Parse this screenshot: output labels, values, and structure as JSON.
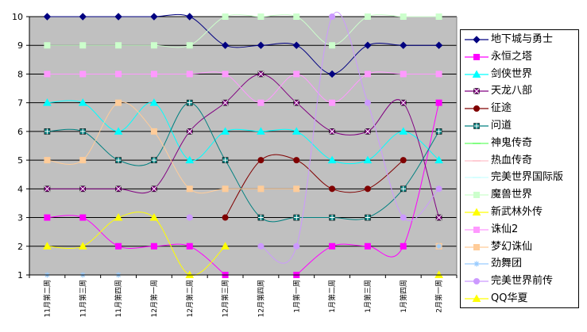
{
  "chart_data": {
    "type": "line",
    "title": "",
    "xlabel": "",
    "ylabel": "",
    "categories": [
      "11月第二周",
      "11月第三周",
      "11月第四周",
      "12月第一周",
      "12月第二周",
      "12月第三周",
      "12月第四周",
      "1月第一周",
      "1月第二周",
      "1月第三周",
      "1月第四周",
      "2月第一周"
    ],
    "ylim": [
      1,
      10
    ],
    "y_ticks": [
      "1",
      "2",
      "3",
      "4",
      "5",
      "6",
      "7",
      "8",
      "9",
      "10"
    ],
    "grid": true,
    "background": "#c0c0c0",
    "legend_position": "right",
    "series": [
      {
        "name": "地下城与勇士",
        "color": "#000080",
        "marker": "diamond",
        "values": [
          10,
          10,
          10,
          10,
          10,
          9,
          9,
          9,
          8,
          9,
          9,
          9
        ]
      },
      {
        "name": "永恒之塔",
        "color": "#ff00ff",
        "marker": "square",
        "values": [
          3,
          3,
          2,
          2,
          2,
          1,
          null,
          1,
          2,
          2,
          2,
          7
        ]
      },
      {
        "name": "剑侠世界",
        "color": "#00ffff",
        "marker": "triangle",
        "values": [
          7,
          7,
          6,
          7,
          5,
          6,
          6,
          6,
          5,
          5,
          6,
          5
        ]
      },
      {
        "name": "天龙八部",
        "color": "#800080",
        "marker": "xsquare",
        "values": [
          4,
          4,
          4,
          4,
          6,
          7,
          8,
          7,
          6,
          6,
          7,
          3
        ]
      },
      {
        "name": "征途",
        "color": "#800000",
        "marker": "circle",
        "values": [
          null,
          null,
          null,
          null,
          null,
          3,
          5,
          5,
          4,
          4,
          5,
          null
        ]
      },
      {
        "name": "问道",
        "color": "#008080",
        "marker": "plussquare",
        "values": [
          6,
          6,
          5,
          5,
          7,
          5,
          3,
          3,
          3,
          3,
          4,
          6
        ]
      },
      {
        "name": "神鬼传奇",
        "color": "#66ff66",
        "marker": "dash",
        "values": [
          null,
          null,
          null,
          null,
          null,
          null,
          null,
          null,
          null,
          null,
          null,
          null
        ]
      },
      {
        "name": "热血传奇",
        "color": "#ffc0cb",
        "marker": "dash",
        "values": [
          null,
          null,
          null,
          null,
          null,
          null,
          null,
          null,
          null,
          null,
          null,
          null
        ]
      },
      {
        "name": "完美世界国际版",
        "color": "#ccffff",
        "marker": "dash",
        "values": [
          null,
          null,
          null,
          null,
          null,
          null,
          null,
          null,
          null,
          null,
          null,
          null
        ]
      },
      {
        "name": "魔兽世界",
        "color": "#ccffcc",
        "marker": "square",
        "values": [
          9,
          9,
          9,
          9,
          9,
          10,
          10,
          10,
          9,
          10,
          10,
          10
        ]
      },
      {
        "name": "新武林外传",
        "color": "#ffff00",
        "marker": "triangle",
        "values": [
          2,
          2,
          3,
          3,
          1,
          2,
          null,
          null,
          null,
          null,
          null,
          1
        ]
      },
      {
        "name": "诛仙2",
        "color": "#ff99ff",
        "marker": "square",
        "values": [
          8,
          8,
          8,
          8,
          8,
          8,
          7,
          8,
          7,
          8,
          8,
          8
        ]
      },
      {
        "name": "梦幻诛仙",
        "color": "#ffcc99",
        "marker": "square",
        "values": [
          5,
          5,
          7,
          6,
          4,
          4,
          4,
          4,
          null,
          null,
          null,
          2
        ]
      },
      {
        "name": "劲舞团",
        "color": "#99ccff",
        "marker": "star",
        "values": [
          1,
          1,
          1,
          null,
          null,
          null,
          null,
          null,
          null,
          null,
          null,
          2
        ]
      },
      {
        "name": "完美世界前传",
        "color": "#cc99ff",
        "marker": "circle",
        "values": [
          null,
          null,
          null,
          null,
          3,
          null,
          2,
          2,
          10,
          7,
          3,
          4
        ]
      },
      {
        "name": "QQ华夏",
        "color": "#ffff00",
        "marker": "triangle",
        "values": [
          null,
          null,
          null,
          null,
          null,
          null,
          null,
          null,
          null,
          null,
          null,
          1
        ]
      }
    ]
  }
}
